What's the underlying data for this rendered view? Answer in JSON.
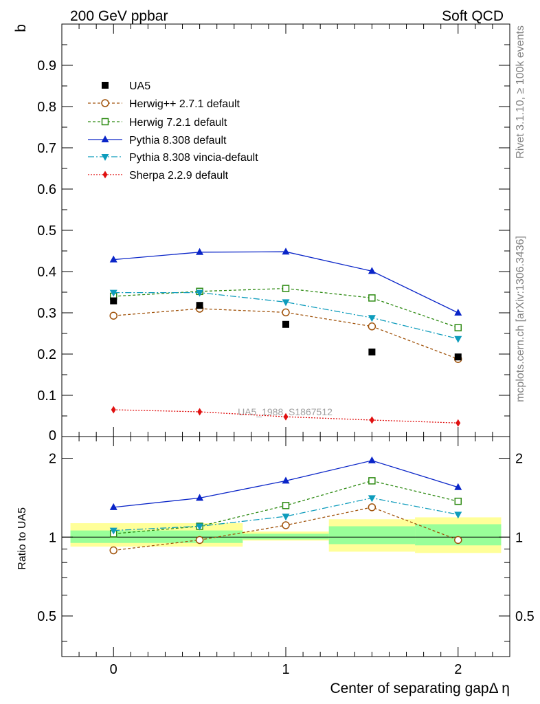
{
  "header": {
    "left": "200 GeV ppbar",
    "right": "Soft QCD"
  },
  "side": {
    "rivet": "Rivet 3.1.10, ≥ 100k events",
    "mcplots": "mcplots.cern.ch [arXiv:1306.3436]"
  },
  "watermark": "UA5_1988_S1867512",
  "chart_data": {
    "type": "line",
    "ylabel": "b",
    "ratio_ylabel": "Ratio to UA5",
    "xlabel": "Center of separating gapΔ η",
    "xlim": [
      -0.3,
      2.3
    ],
    "ylim": [
      0,
      1.0
    ],
    "ratio_ylim": [
      0.35,
      2.42
    ],
    "x_ticks": [
      0,
      1,
      2
    ],
    "x_tick_labels": [
      "0",
      "1",
      "2"
    ],
    "y_ticks": [
      0.1,
      0.2,
      0.3,
      0.4,
      0.5,
      0.6,
      0.7,
      0.8,
      0.9
    ],
    "y_tick_labels": [
      "0.1",
      "0.2",
      "0.3",
      "0.4",
      "0.5",
      "0.6",
      "0.7",
      "0.8",
      "0.9"
    ],
    "y_zero_label": "0",
    "ratio_ticks": [
      0.5,
      1,
      2
    ],
    "ratio_tick_labels": [
      "0.5",
      "1",
      "2"
    ],
    "x": [
      0,
      0.5,
      1,
      1.5,
      2
    ],
    "data": {
      "name": "UA5",
      "values": [
        0.329,
        0.318,
        0.272,
        0.205,
        0.193
      ],
      "color": "#000000",
      "ratio_bands": [
        {
          "x": [
            -0.25,
            0.75
          ],
          "inner": [
            0.95,
            1.06
          ],
          "outer": [
            0.92,
            1.13
          ]
        },
        {
          "x": [
            0.75,
            1.25
          ],
          "inner": [
            0.98,
            1.03
          ],
          "outer": [
            0.97,
            1.05
          ]
        },
        {
          "x": [
            1.25,
            1.75
          ],
          "inner": [
            0.94,
            1.1
          ],
          "outer": [
            0.88,
            1.17
          ]
        },
        {
          "x": [
            1.75,
            2.25
          ],
          "inner": [
            0.93,
            1.12
          ],
          "outer": [
            0.87,
            1.19
          ]
        }
      ]
    },
    "legend_position": "top-left",
    "series": [
      {
        "name": "Herwig++ 2.7.1 default",
        "color": "#a0520a",
        "dash": "4,3",
        "marker": "open-circle",
        "values": [
          0.293,
          0.31,
          0.301,
          0.267,
          0.188
        ],
        "ratio": [
          0.89,
          0.975,
          1.11,
          1.3,
          0.975
        ]
      },
      {
        "name": "Herwig 7.2.1 default",
        "color": "#2d8a12",
        "dash": "4,3",
        "marker": "open-square",
        "values": [
          0.34,
          0.352,
          0.359,
          0.336,
          0.264
        ],
        "ratio": [
          1.03,
          1.1,
          1.32,
          1.64,
          1.37
        ]
      },
      {
        "name": "Pythia 8.308 default",
        "color": "#0a25c8",
        "dash": "",
        "marker": "filled-triangle-up",
        "values": [
          0.429,
          0.447,
          0.448,
          0.401,
          0.3
        ],
        "ratio": [
          1.3,
          1.41,
          1.64,
          1.96,
          1.55
        ]
      },
      {
        "name": "Pythia 8.308 vincia-default",
        "color": "#0e9cbc",
        "dash": "9,3,2,3",
        "marker": "filled-triangle-down",
        "values": [
          0.349,
          0.349,
          0.326,
          0.288,
          0.237
        ],
        "ratio": [
          1.06,
          1.1,
          1.2,
          1.41,
          1.22
        ]
      },
      {
        "name": "Sherpa 2.2.9 default",
        "color": "#e01010",
        "dash": "2,2",
        "marker": "filled-diamond",
        "values": [
          0.065,
          0.06,
          0.048,
          0.04,
          0.033
        ],
        "ratio": []
      }
    ]
  }
}
